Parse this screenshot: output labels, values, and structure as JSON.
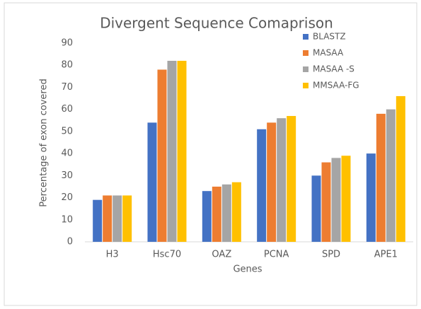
{
  "chart_data": {
    "type": "bar",
    "title": "Divergent Sequence  Comaprison",
    "x_label": "Genes",
    "y_label": "Percentage of exon covered",
    "categories": [
      "H3",
      "Hsc70",
      "OAZ",
      "PCNA",
      "SPD",
      "APE1"
    ],
    "series": [
      {
        "name": "BLASTZ",
        "color": "#4472c4",
        "values": [
          19,
          54,
          23,
          51,
          30,
          40
        ]
      },
      {
        "name": "MASAA",
        "color": "#ed7d31",
        "values": [
          21,
          78,
          25,
          54,
          36,
          58
        ]
      },
      {
        "name": "MASAA -S",
        "color": "#a5a5a5",
        "values": [
          21,
          82,
          26,
          56,
          38,
          60
        ]
      },
      {
        "name": "MMSAA-FG",
        "color": "#ffc000",
        "values": [
          21,
          82,
          27,
          57,
          39,
          66
        ]
      }
    ],
    "ylim": [
      0,
      90
    ],
    "yticks": [
      0,
      10,
      20,
      30,
      40,
      50,
      60,
      70,
      80,
      90
    ],
    "grid": false,
    "legend": "upper right"
  }
}
